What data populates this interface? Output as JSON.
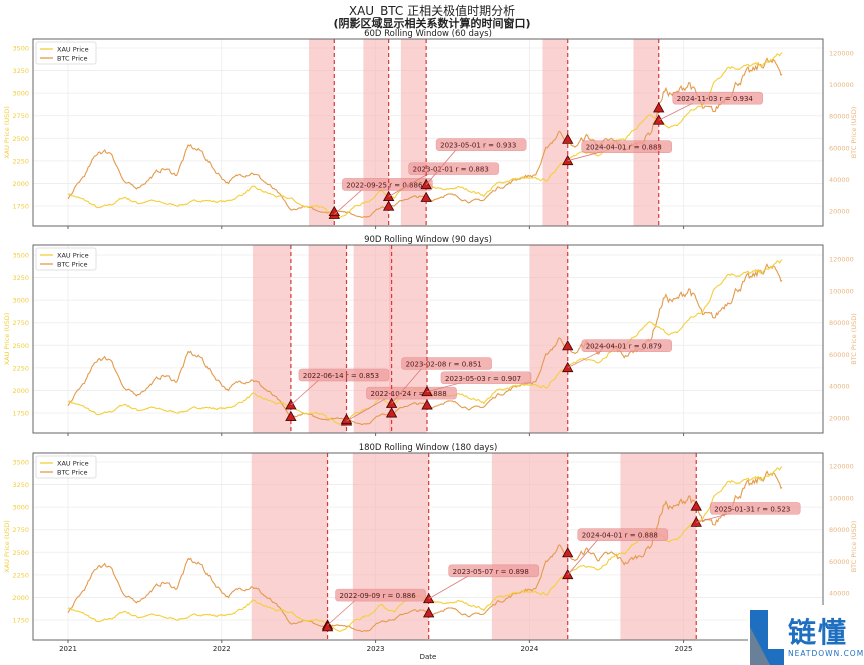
{
  "title": "XAU_BTC 正相关极值时期分析",
  "subtitle": "(阴影区域显示相关系数计算的时间窗口)",
  "watermark": {
    "text": "链懂",
    "sub": "NEATDOWN.COM"
  },
  "colors": {
    "xau": "#f3cf3a",
    "btc": "#e49a4c",
    "shade": "#f7b4b4",
    "marker": "#c8201e",
    "dash": "#d43a3a",
    "label_box": "#f09c9c"
  },
  "chart_data": [
    {
      "type": "line",
      "title": "60D Rolling Window (60 days)",
      "window_days": 60,
      "highlights": [
        {
          "date": "2022-09-25",
          "label": "2022-09-25\\nr = 0.886"
        },
        {
          "date": "2023-02-01",
          "label": "2023-02-01\\nr = 0.883"
        },
        {
          "date": "2023-05-01",
          "label": "2023-05-01\\nr = 0.933"
        },
        {
          "date": "2024-04-01",
          "label": "2024-04-01\\nr = 0.883"
        },
        {
          "date": "2024-11-03",
          "label": "2024-11-03\\nr = 0.934"
        }
      ]
    },
    {
      "type": "line",
      "title": "90D Rolling Window (90 days)",
      "window_days": 90,
      "highlights": [
        {
          "date": "2022-06-14",
          "label": "2022-06-14\\nr = 0.853"
        },
        {
          "date": "2022-10-24",
          "label": "2022-10-24\\nr = 0.888"
        },
        {
          "date": "2023-02-08",
          "label": "2023-02-08\\nr = 0.851"
        },
        {
          "date": "2023-05-03",
          "label": "2023-05-03\\nr = 0.907"
        },
        {
          "date": "2024-04-01",
          "label": "2024-04-01\\nr = 0.879"
        }
      ]
    },
    {
      "type": "line",
      "title": "180D Rolling Window (180 days)",
      "window_days": 180,
      "highlights": [
        {
          "date": "2022-09-09",
          "label": "2022-09-09\\nr = 0.886"
        },
        {
          "date": "2023-05-07",
          "label": "2023-05-07\\nr = 0.898"
        },
        {
          "date": "2024-04-01",
          "label": "2024-04-01\\nr = 0.888"
        },
        {
          "date": "2025-01-31",
          "label": "2025-01-31\\nr = 0.523"
        }
      ]
    }
  ],
  "shared": {
    "xlabel": "Date",
    "ylabel_left": "XAU Price (USD)",
    "ylabel_right": "BTC Price (USD)",
    "legend": [
      "XAU Price",
      "BTC Price"
    ],
    "legend_position": "upper-left",
    "grid": true,
    "xticks": [
      "2021",
      "2022",
      "2023",
      "2024",
      "2025"
    ],
    "yticks_left": [
      1750,
      2000,
      2250,
      2500,
      2750,
      3000,
      3250,
      3500
    ],
    "yticks_right": [
      20000,
      40000,
      60000,
      80000,
      100000,
      120000
    ],
    "months": [
      "2021-01",
      "2021-02",
      "2021-03",
      "2021-04",
      "2021-05",
      "2021-06",
      "2021-07",
      "2021-08",
      "2021-09",
      "2021-10",
      "2021-11",
      "2021-12",
      "2022-01",
      "2022-02",
      "2022-03",
      "2022-04",
      "2022-05",
      "2022-06",
      "2022-07",
      "2022-08",
      "2022-09",
      "2022-10",
      "2022-11",
      "2022-12",
      "2023-01",
      "2023-02",
      "2023-03",
      "2023-04",
      "2023-05",
      "2023-06",
      "2023-07",
      "2023-08",
      "2023-09",
      "2023-10",
      "2023-11",
      "2023-12",
      "2024-01",
      "2024-02",
      "2024-03",
      "2024-04",
      "2024-05",
      "2024-06",
      "2024-07",
      "2024-08",
      "2024-09",
      "2024-10",
      "2024-11",
      "2024-12",
      "2025-01",
      "2025-02",
      "2025-03",
      "2025-04",
      "2025-05",
      "2025-06",
      "2025-07",
      "2025-08"
    ],
    "series": [
      {
        "name": "XAU Price",
        "values": [
          1860,
          1800,
          1720,
          1770,
          1850,
          1780,
          1810,
          1780,
          1760,
          1780,
          1820,
          1800,
          1800,
          1870,
          1950,
          1900,
          1850,
          1830,
          1740,
          1760,
          1670,
          1640,
          1750,
          1800,
          1930,
          1830,
          1980,
          2000,
          1960,
          1920,
          1960,
          1920,
          1870,
          1990,
          2040,
          2060,
          2040,
          2040,
          2230,
          2300,
          2340,
          2330,
          2450,
          2500,
          2630,
          2740,
          2650,
          2620,
          2800,
          2860,
          3120,
          3300,
          3290,
          3300,
          3320,
          3420
        ]
      },
      {
        "name": "BTC Price",
        "values": [
          33000,
          45000,
          58000,
          57000,
          37000,
          35000,
          41000,
          47000,
          43000,
          61000,
          57000,
          46000,
          38000,
          43000,
          45000,
          38000,
          31000,
          20000,
          23000,
          20000,
          19500,
          20500,
          17000,
          16500,
          23000,
          23500,
          28000,
          29000,
          27000,
          30500,
          29000,
          26000,
          27000,
          34500,
          37700,
          42000,
          42500,
          61000,
          71000,
          60000,
          67000,
          62000,
          64000,
          59000,
          63000,
          70000,
          96000,
          93000,
          102000,
          84000,
          82000,
          94000,
          104000,
          107000,
          115000,
          110000
        ]
      }
    ]
  }
}
